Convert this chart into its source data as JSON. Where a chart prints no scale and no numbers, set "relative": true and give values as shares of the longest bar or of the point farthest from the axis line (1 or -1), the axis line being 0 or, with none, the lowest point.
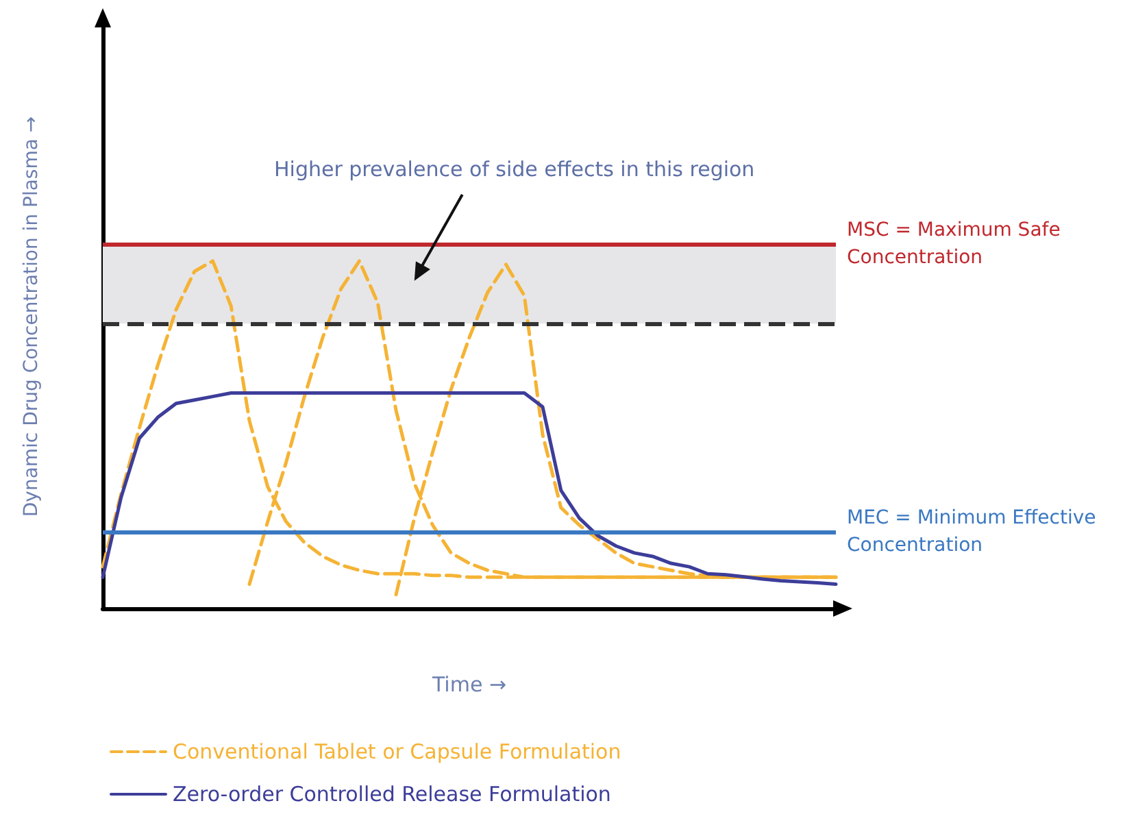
{
  "chart_data": {
    "type": "line",
    "relative": true,
    "xlabel": "Time →",
    "ylabel": "Dynamic Drug Concentration in Plasma →",
    "grid": false,
    "legend": "bottom left",
    "marker": "none",
    "categories": [
      null,
      null,
      null,
      null,
      null,
      null,
      null,
      null,
      null,
      null,
      null,
      null,
      null,
      null,
      null,
      null,
      null,
      null,
      null,
      null,
      null,
      null,
      null,
      null,
      null,
      null,
      null,
      null,
      null,
      null,
      null,
      null,
      null,
      null,
      null,
      null,
      null,
      null,
      null,
      null,
      null
    ],
    "annotations": [
      "Higher prevalence of side effects in this region"
    ],
    "series": [
      {
        "name": "Conventional Tablet or Capsule Formulation",
        "color": "#f5b335",
        "line_style": "dashed",
        "values": [
          0.12,
          0.33,
          0.52,
          0.7,
          0.86,
          0.97,
          1.0,
          0.87,
          0.54,
          0.35,
          0.25,
          0.19,
          0.15,
          0.125,
          0.11,
          0.1,
          0.1,
          0.1,
          0.095,
          0.095,
          0.09,
          0.09,
          0.09,
          0.09,
          0.09,
          0.09,
          0.09,
          0.09,
          0.09,
          0.09,
          0.09,
          0.09,
          0.09,
          0.09,
          0.09,
          0.09,
          0.09,
          0.09,
          0.09,
          0.09,
          0.09
        ]
      },
      {
        "color": "#f5b335",
        "line_style": "dashed",
        "values": [
          null,
          null,
          null,
          null,
          null,
          null,
          null,
          null,
          0.07,
          0.25,
          0.42,
          0.61,
          0.78,
          0.92,
          1.0,
          0.88,
          0.57,
          0.36,
          0.24,
          0.16,
          0.13,
          0.11,
          0.1,
          0.09,
          0.09,
          0.09,
          0.09,
          0.09,
          0.09,
          0.09,
          0.09,
          0.09,
          0.09,
          0.09,
          0.09,
          0.09,
          0.09,
          0.09,
          0.09,
          0.09,
          0.09
        ]
      },
      {
        "color": "#f5b335",
        "line_style": "dashed",
        "values": [
          null,
          null,
          null,
          null,
          null,
          null,
          null,
          null,
          null,
          null,
          null,
          null,
          null,
          null,
          null,
          null,
          0.04,
          0.26,
          0.45,
          0.63,
          0.78,
          0.91,
          0.99,
          0.9,
          0.5,
          0.29,
          0.24,
          0.2,
          0.16,
          0.13,
          0.12,
          0.11,
          0.1,
          0.094,
          0.09,
          0.09,
          0.09,
          0.09,
          0.09,
          0.09,
          0.09
        ]
      },
      {
        "name": "Zero-order Controlled Release Formulation",
        "color": "#3d3d9a",
        "line_style": "solid",
        "values": [
          0.09,
          0.32,
          0.49,
          0.55,
          0.59,
          0.6,
          0.61,
          0.62,
          0.62,
          0.62,
          0.62,
          0.62,
          0.62,
          0.62,
          0.62,
          0.62,
          0.62,
          0.62,
          0.62,
          0.62,
          0.62,
          0.62,
          0.62,
          0.62,
          0.58,
          0.34,
          0.26,
          0.21,
          0.18,
          0.16,
          0.15,
          0.13,
          0.12,
          0.1,
          0.097,
          0.091,
          0.085,
          0.08,
          0.077,
          0.074,
          0.07
        ]
      }
    ],
    "ref_lines": [
      {
        "axis": "y",
        "value": 1.05,
        "label": "MSC = Maximum Safe Concentration",
        "color": "#c0282d",
        "line_style": "solid"
      },
      {
        "axis": "y",
        "value": 0.82,
        "color": "#333333",
        "line_style": "dashed"
      },
      {
        "axis": "y",
        "value": 0.22,
        "label": "MEC = Minimum Effective Concentration",
        "color": "#3a78c2",
        "line_style": "solid"
      }
    ],
    "bands": [
      {
        "axis": "y",
        "from": 0.82,
        "to": 1.05,
        "color": "#e6e6e8"
      }
    ]
  }
}
